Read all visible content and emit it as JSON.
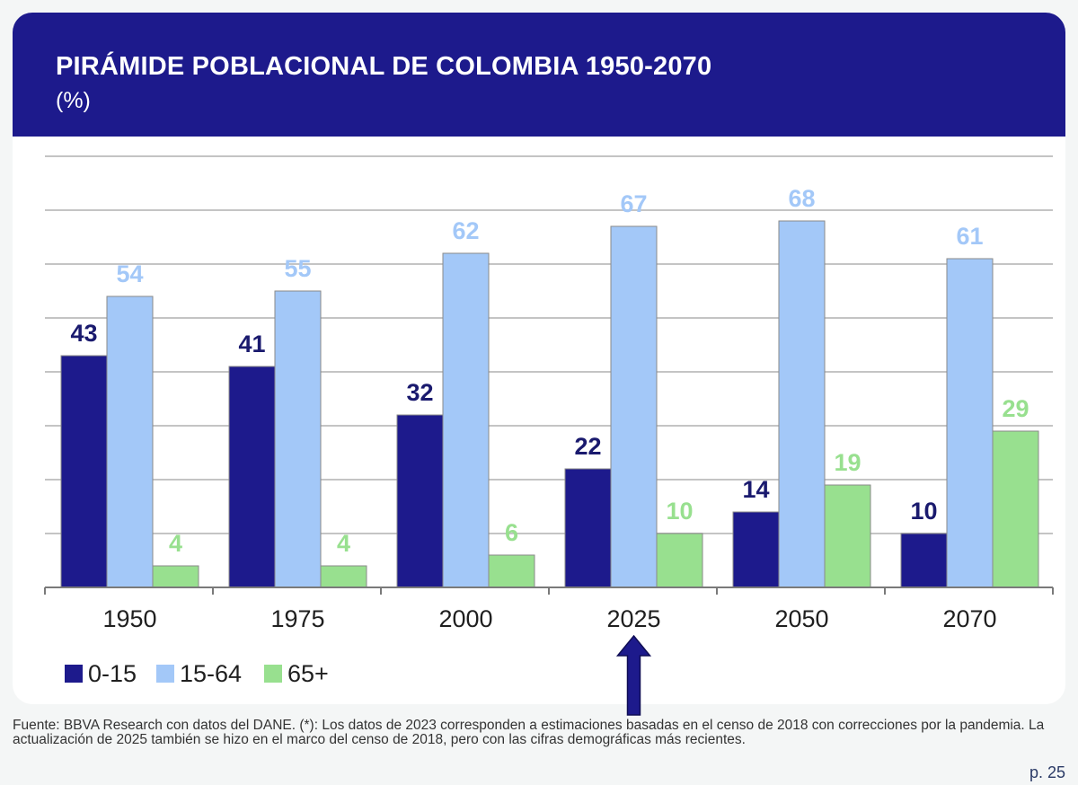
{
  "header": {
    "title": "PIRÁMIDE POBLACIONAL DE COLOMBIA 1950-2070",
    "subtitle": "(%)"
  },
  "colors": {
    "header_bg": "#1d1a8c",
    "series_0_15": "#1d1a8c",
    "series_15_64": "#a3c8f8",
    "series_65_plus": "#98e08f",
    "label_0_15": "#1a1a6e",
    "label_15_64": "#a3c8f8",
    "label_65_plus": "#98e08f",
    "arrow": "#1d1a8c"
  },
  "chart_data": {
    "type": "bar",
    "title": "PIRÁMIDE POBLACIONAL DE COLOMBIA 1950-2070",
    "subtitle": "(%)",
    "categories": [
      "1950",
      "1975",
      "2000",
      "2025",
      "2050",
      "2070"
    ],
    "series": [
      {
        "name": "0-15",
        "values": [
          43,
          41,
          32,
          22,
          14,
          10
        ]
      },
      {
        "name": "15-64",
        "values": [
          54,
          55,
          62,
          67,
          68,
          61
        ]
      },
      {
        "name": "65+",
        "values": [
          4,
          4,
          6,
          10,
          19,
          29
        ]
      }
    ],
    "data_labels": true,
    "ylim": [
      0,
      80
    ],
    "grid": true,
    "legend": "bottom-left",
    "highlight_category": "2025"
  },
  "footer": {
    "source": "Fuente: BBVA Research con datos del DANE. (*): Los datos de 2023 corresponden a estimaciones basadas en el censo de 2018 con correcciones por la pandemia. La actualización de 2025 también se hizo en el marco del censo de 2018, pero con las cifras demográficas más recientes.",
    "page": "p. 25"
  }
}
